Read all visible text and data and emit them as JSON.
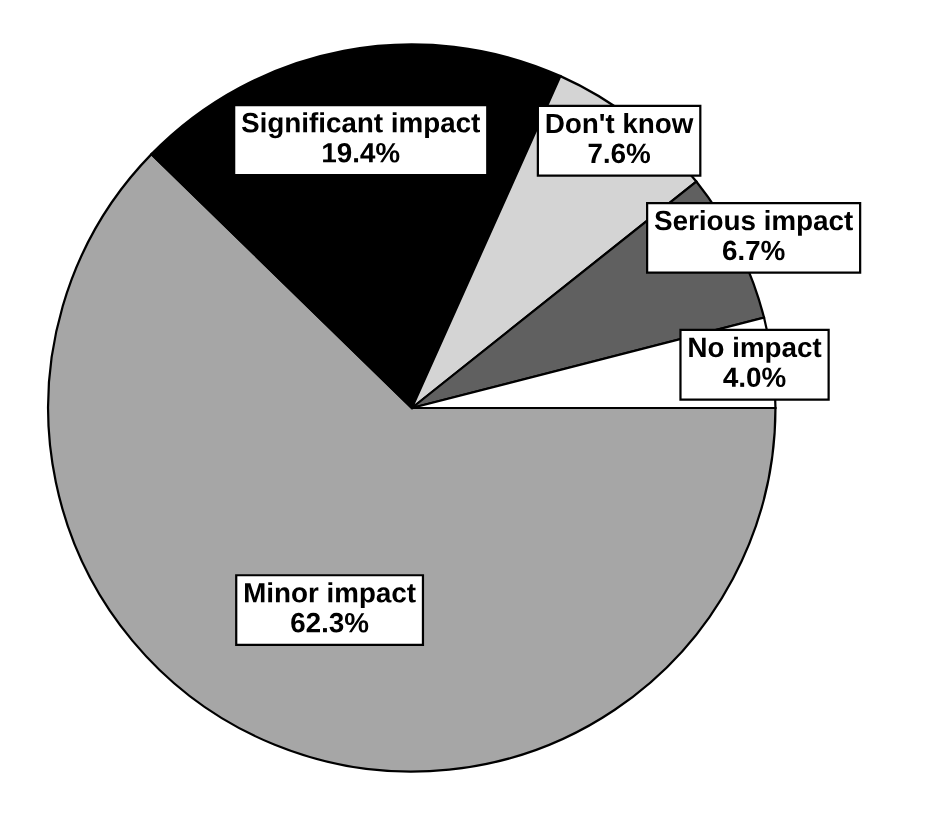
{
  "chart_data": {
    "type": "pie",
    "categories": [
      "Minor impact",
      "Significant impact",
      "Don't know",
      "Serious impact",
      "No impact"
    ],
    "values": [
      62.3,
      19.4,
      7.6,
      6.7,
      4.0
    ],
    "colors": [
      "#a6a6a6",
      "#000000",
      "#d4d4d4",
      "#606060",
      "#ffffff"
    ],
    "value_labels": [
      "62.3%",
      "19.4%",
      "7.6%",
      "6.7%",
      "4.0%"
    ]
  }
}
